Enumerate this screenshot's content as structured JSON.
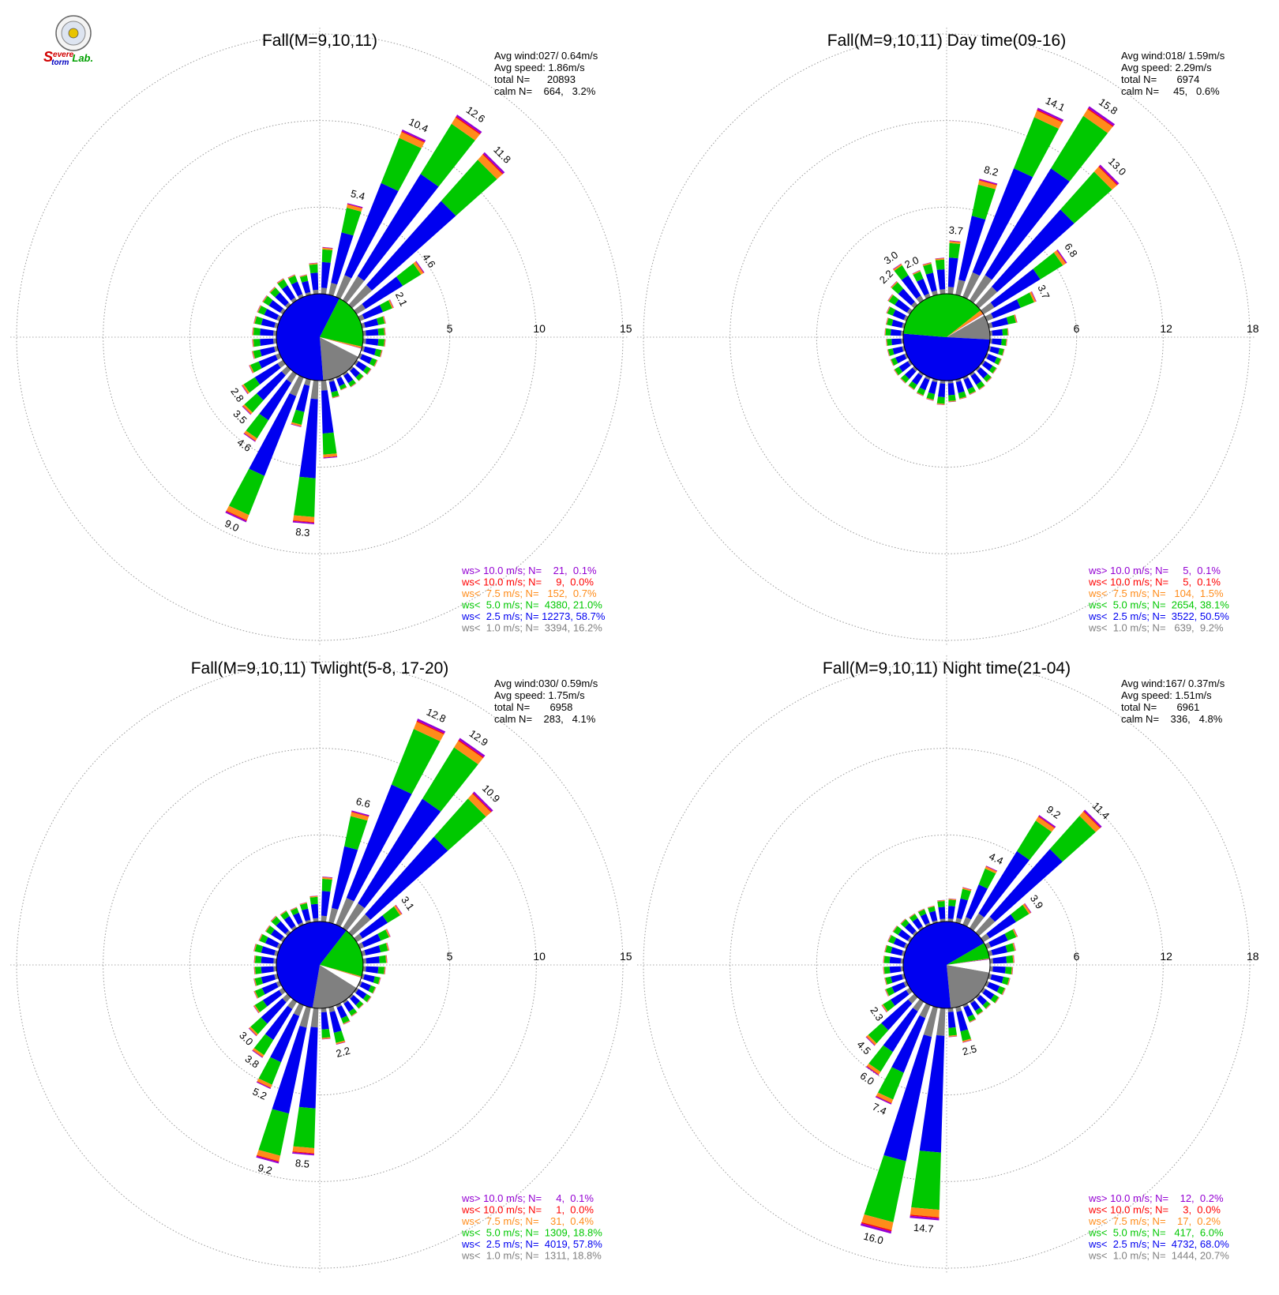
{
  "logo": {
    "text_s": "S",
    "text_evere": "evere",
    "text_torm": "torm",
    "text_lab": "Lab.",
    "colors": {
      "severe": "#d00000",
      "storm": "#0000c0",
      "lab": "#00a000"
    }
  },
  "colors": {
    "gt10": "#9400d3",
    "lt10": "#ff0000",
    "lt7_5": "#ff8c1a",
    "lt5": "#00c800",
    "lt2_5": "#0000f0",
    "lt1": "#808080",
    "calm": "#ffffff"
  },
  "chart_data": [
    {
      "type": "windrose",
      "title": "Fall(M=9,10,11)",
      "rmax": 15,
      "ticks": [
        "5",
        "10",
        "15"
      ],
      "stats": {
        "avg_wind": "Avg wind:027/ 0.64m/s",
        "avg_speed": "Avg speed: 1.86m/s",
        "total": "total N=      20893",
        "calm": "calm N=    664,   3.2%"
      },
      "legend": [
        {
          "label": "ws> 10.0 m/s; N=    21,  0.1%",
          "color": "#9400d3"
        },
        {
          "label": "ws< 10.0 m/s; N=     9,  0.0%",
          "color": "#ff0000"
        },
        {
          "label": "ws<  7.5 m/s; N=   152,  0.7%",
          "color": "#ff8c1a"
        },
        {
          "label": "ws<  5.0 m/s; N=  4380, 21.0%",
          "color": "#00c800"
        },
        {
          "label": "ws<  2.5 m/s; N= 12273, 58.7%",
          "color": "#0000f0"
        },
        {
          "label": "ws<  1.0 m/s; N=  3394, 16.2%",
          "color": "#808080"
        }
      ],
      "pie": [
        0.162,
        0.587,
        0.21,
        0.007,
        0.0,
        0.001,
        0.032
      ],
      "pie_start_deg": 117,
      "bars": [
        {
          "dir": 5,
          "total": 2.7
        },
        {
          "dir": 15,
          "total": 5.4,
          "label": "5.4"
        },
        {
          "dir": 25,
          "total": 10.4,
          "label": "10.4"
        },
        {
          "dir": 35,
          "total": 12.6,
          "label": "12.6"
        },
        {
          "dir": 45,
          "total": 11.8,
          "label": "11.8"
        },
        {
          "dir": 55,
          "total": 4.6,
          "label": "4.6"
        },
        {
          "dir": 65,
          "total": 2.1,
          "label": "2.1"
        },
        {
          "dir": 75,
          "total": 1.4
        },
        {
          "dir": 85,
          "total": 1.3
        },
        {
          "dir": 95,
          "total": 1.3
        },
        {
          "dir": 105,
          "total": 1.2
        },
        {
          "dir": 115,
          "total": 1.1
        },
        {
          "dir": 125,
          "total": 1.0
        },
        {
          "dir": 135,
          "total": 0.9
        },
        {
          "dir": 145,
          "total": 0.9
        },
        {
          "dir": 155,
          "total": 0.8
        },
        {
          "dir": 165,
          "total": 1.1
        },
        {
          "dir": 175,
          "total": 4.5
        },
        {
          "dir": 185,
          "total": 8.3,
          "label": "8.3"
        },
        {
          "dir": 195,
          "total": 2.8
        },
        {
          "dir": 205,
          "total": 9.0,
          "label": "9.0"
        },
        {
          "dir": 215,
          "total": 4.6,
          "label": "4.6"
        },
        {
          "dir": 225,
          "total": 3.5,
          "label": "3.5"
        },
        {
          "dir": 235,
          "total": 2.8,
          "label": "2.8"
        },
        {
          "dir": 245,
          "total": 1.9
        },
        {
          "dir": 255,
          "total": 1.5
        },
        {
          "dir": 265,
          "total": 1.4
        },
        {
          "dir": 275,
          "total": 1.4
        },
        {
          "dir": 285,
          "total": 1.4
        },
        {
          "dir": 295,
          "total": 1.4
        },
        {
          "dir": 305,
          "total": 1.4
        },
        {
          "dir": 315,
          "total": 1.4
        },
        {
          "dir": 325,
          "total": 1.5
        },
        {
          "dir": 335,
          "total": 1.4
        },
        {
          "dir": 345,
          "total": 1.2
        },
        {
          "dir": 355,
          "total": 1.8
        }
      ]
    },
    {
      "type": "windrose",
      "title": "Fall(M=9,10,11) Day time(09-16)",
      "rmax": 18,
      "ticks": [
        "6",
        "12",
        "18"
      ],
      "stats": {
        "avg_wind": "Avg wind:018/ 1.59m/s",
        "avg_speed": "Avg speed: 2.29m/s",
        "total": "total N=       6974",
        "calm": "calm N=     45,   0.6%"
      },
      "legend": [
        {
          "label": "ws> 10.0 m/s; N=     5,  0.1%",
          "color": "#9400d3"
        },
        {
          "label": "ws< 10.0 m/s; N=     5,  0.1%",
          "color": "#ff0000"
        },
        {
          "label": "ws<  7.5 m/s; N=   104,  1.5%",
          "color": "#ff8c1a"
        },
        {
          "label": "ws<  5.0 m/s; N=  2654, 38.1%",
          "color": "#00c800"
        },
        {
          "label": "ws<  2.5 m/s; N=  3522, 50.5%",
          "color": "#0000f0"
        },
        {
          "label": "ws<  1.0 m/s; N=   639,  9.2%",
          "color": "#808080"
        }
      ],
      "pie": [
        0.092,
        0.505,
        0.381,
        0.015,
        0.001,
        0.001,
        0.006
      ],
      "pie_start_deg": 60,
      "bars": [
        {
          "dir": 5,
          "total": 3.7,
          "label": "3.7"
        },
        {
          "dir": 15,
          "total": 8.2,
          "label": "8.2"
        },
        {
          "dir": 25,
          "total": 14.1,
          "label": "14.1"
        },
        {
          "dir": 35,
          "total": 15.8,
          "label": "15.8"
        },
        {
          "dir": 45,
          "total": 13.0,
          "label": "13.0"
        },
        {
          "dir": 55,
          "total": 6.8,
          "label": "6.8"
        },
        {
          "dir": 65,
          "total": 3.7,
          "label": "3.7"
        },
        {
          "dir": 75,
          "total": 2.0
        },
        {
          "dir": 85,
          "total": 1.3
        },
        {
          "dir": 95,
          "total": 1.2
        },
        {
          "dir": 105,
          "total": 1.1
        },
        {
          "dir": 115,
          "total": 1.1
        },
        {
          "dir": 125,
          "total": 1.1
        },
        {
          "dir": 135,
          "total": 1.2
        },
        {
          "dir": 145,
          "total": 1.3
        },
        {
          "dir": 155,
          "total": 1.3
        },
        {
          "dir": 165,
          "total": 1.4
        },
        {
          "dir": 175,
          "total": 1.5
        },
        {
          "dir": 185,
          "total": 1.7
        },
        {
          "dir": 195,
          "total": 1.5
        },
        {
          "dir": 205,
          "total": 1.4
        },
        {
          "dir": 215,
          "total": 1.3
        },
        {
          "dir": 225,
          "total": 1.3
        },
        {
          "dir": 235,
          "total": 1.3
        },
        {
          "dir": 245,
          "total": 1.2
        },
        {
          "dir": 255,
          "total": 1.2
        },
        {
          "dir": 265,
          "total": 1.2
        },
        {
          "dir": 275,
          "total": 1.3
        },
        {
          "dir": 285,
          "total": 1.3
        },
        {
          "dir": 295,
          "total": 1.5
        },
        {
          "dir": 305,
          "total": 1.8
        },
        {
          "dir": 315,
          "total": 2.2,
          "label": "2.2"
        },
        {
          "dir": 325,
          "total": 3.0,
          "label": "3.0"
        },
        {
          "dir": 335,
          "total": 2.0,
          "label": "2.0"
        },
        {
          "dir": 345,
          "total": 2.3
        },
        {
          "dir": 355,
          "total": 2.5
        }
      ]
    },
    {
      "type": "windrose",
      "title": "Fall(M=9,10,11) Twlight(5-8, 17-20)",
      "rmax": 15,
      "ticks": [
        "5",
        "10",
        "15"
      ],
      "stats": {
        "avg_wind": "Avg wind:030/ 0.59m/s",
        "avg_speed": "Avg speed: 1.75m/s",
        "total": "total N=       6958",
        "calm": "calm N=    283,   4.1%"
      },
      "legend": [
        {
          "label": "ws> 10.0 m/s; N=     4,  0.1%",
          "color": "#9400d3"
        },
        {
          "label": "ws< 10.0 m/s; N=     1,  0.0%",
          "color": "#ff0000"
        },
        {
          "label": "ws<  7.5 m/s; N=    31,  0.4%",
          "color": "#ff8c1a"
        },
        {
          "label": "ws<  5.0 m/s; N=  1309, 18.8%",
          "color": "#00c800"
        },
        {
          "label": "ws<  2.5 m/s; N=  4019, 57.8%",
          "color": "#0000f0"
        },
        {
          "label": "ws<  1.0 m/s; N=  1311, 18.8%",
          "color": "#808080"
        }
      ],
      "pie": [
        0.188,
        0.578,
        0.188,
        0.004,
        0.0,
        0.001,
        0.041
      ],
      "pie_start_deg": 122,
      "bars": [
        {
          "dir": 5,
          "total": 2.6
        },
        {
          "dir": 15,
          "total": 6.6,
          "label": "6.6"
        },
        {
          "dir": 25,
          "total": 12.8,
          "label": "12.8"
        },
        {
          "dir": 35,
          "total": 12.9,
          "label": "12.9"
        },
        {
          "dir": 45,
          "total": 10.9,
          "label": "10.9"
        },
        {
          "dir": 55,
          "total": 3.1,
          "label": "3.1"
        },
        {
          "dir": 65,
          "total": 1.9
        },
        {
          "dir": 75,
          "total": 1.6
        },
        {
          "dir": 85,
          "total": 1.4
        },
        {
          "dir": 95,
          "total": 1.3
        },
        {
          "dir": 105,
          "total": 1.1
        },
        {
          "dir": 115,
          "total": 1.0
        },
        {
          "dir": 125,
          "total": 1.0
        },
        {
          "dir": 135,
          "total": 0.9
        },
        {
          "dir": 145,
          "total": 1.0
        },
        {
          "dir": 155,
          "total": 1.2
        },
        {
          "dir": 165,
          "total": 2.2,
          "label": "2.2"
        },
        {
          "dir": 175,
          "total": 1.8
        },
        {
          "dir": 185,
          "total": 8.5,
          "label": "8.5"
        },
        {
          "dir": 195,
          "total": 9.2,
          "label": "9.2"
        },
        {
          "dir": 205,
          "total": 5.2,
          "label": "5.2"
        },
        {
          "dir": 215,
          "total": 3.8,
          "label": "3.8"
        },
        {
          "dir": 225,
          "total": 3.0,
          "label": "3.0"
        },
        {
          "dir": 235,
          "total": 2.0
        },
        {
          "dir": 245,
          "total": 1.6
        },
        {
          "dir": 255,
          "total": 1.4
        },
        {
          "dir": 265,
          "total": 1.3
        },
        {
          "dir": 275,
          "total": 1.3
        },
        {
          "dir": 285,
          "total": 1.4
        },
        {
          "dir": 295,
          "total": 1.3
        },
        {
          "dir": 305,
          "total": 1.2
        },
        {
          "dir": 315,
          "total": 1.3
        },
        {
          "dir": 325,
          "total": 1.2
        },
        {
          "dir": 335,
          "total": 1.1
        },
        {
          "dir": 345,
          "total": 1.2
        },
        {
          "dir": 355,
          "total": 1.5
        }
      ]
    },
    {
      "type": "windrose",
      "title": "Fall(M=9,10,11) Night time(21-04)",
      "rmax": 18,
      "ticks": [
        "6",
        "12",
        "18"
      ],
      "stats": {
        "avg_wind": "Avg wind:167/ 0.37m/s",
        "avg_speed": "Avg speed: 1.51m/s",
        "total": "total N=       6961",
        "calm": "calm N=    336,   4.8%"
      },
      "legend": [
        {
          "label": "ws> 10.0 m/s; N=    12,  0.2%",
          "color": "#9400d3"
        },
        {
          "label": "ws< 10.0 m/s; N=     3,  0.0%",
          "color": "#ff0000"
        },
        {
          "label": "ws<  7.5 m/s; N=    17,  0.2%",
          "color": "#ff8c1a"
        },
        {
          "label": "ws<  5.0 m/s; N=   417,  6.0%",
          "color": "#00c800"
        },
        {
          "label": "ws<  2.5 m/s; N=  4732, 68.0%",
          "color": "#0000f0"
        },
        {
          "label": "ws<  1.0 m/s; N=  1444, 20.7%",
          "color": "#808080"
        }
      ],
      "pie": [
        0.207,
        0.68,
        0.06,
        0.002,
        0.0,
        0.002,
        0.048
      ],
      "pie_start_deg": 100,
      "bars": [
        {
          "dir": 5,
          "total": 1.6
        },
        {
          "dir": 15,
          "total": 2.5
        },
        {
          "dir": 25,
          "total": 4.4,
          "label": "4.4"
        },
        {
          "dir": 35,
          "total": 9.2,
          "label": "9.2"
        },
        {
          "dir": 45,
          "total": 11.4,
          "label": "11.4"
        },
        {
          "dir": 55,
          "total": 3.9,
          "label": "3.9"
        },
        {
          "dir": 65,
          "total": 2.3
        },
        {
          "dir": 75,
          "total": 1.9
        },
        {
          "dir": 85,
          "total": 1.7
        },
        {
          "dir": 95,
          "total": 1.6
        },
        {
          "dir": 105,
          "total": 1.5
        },
        {
          "dir": 115,
          "total": 1.4
        },
        {
          "dir": 125,
          "total": 1.3
        },
        {
          "dir": 135,
          "total": 1.1
        },
        {
          "dir": 145,
          "total": 1.1
        },
        {
          "dir": 155,
          "total": 1.3
        },
        {
          "dir": 165,
          "total": 2.5,
          "label": "2.5"
        },
        {
          "dir": 175,
          "total": 2.0
        },
        {
          "dir": 185,
          "total": 14.7,
          "label": "14.7"
        },
        {
          "dir": 195,
          "total": 16.0,
          "label": "16.0"
        },
        {
          "dir": 205,
          "total": 7.4,
          "label": "7.4"
        },
        {
          "dir": 215,
          "total": 6.0,
          "label": "6.0"
        },
        {
          "dir": 225,
          "total": 4.5,
          "label": "4.5"
        },
        {
          "dir": 235,
          "total": 2.3,
          "label": "2.3"
        },
        {
          "dir": 245,
          "total": 1.6
        },
        {
          "dir": 255,
          "total": 1.4
        },
        {
          "dir": 265,
          "total": 1.4
        },
        {
          "dir": 275,
          "total": 1.4
        },
        {
          "dir": 285,
          "total": 1.4
        },
        {
          "dir": 295,
          "total": 1.4
        },
        {
          "dir": 305,
          "total": 1.4
        },
        {
          "dir": 315,
          "total": 1.3
        },
        {
          "dir": 325,
          "total": 1.2
        },
        {
          "dir": 335,
          "total": 1.2
        },
        {
          "dir": 345,
          "total": 1.2
        },
        {
          "dir": 355,
          "total": 1.5
        }
      ]
    }
  ]
}
